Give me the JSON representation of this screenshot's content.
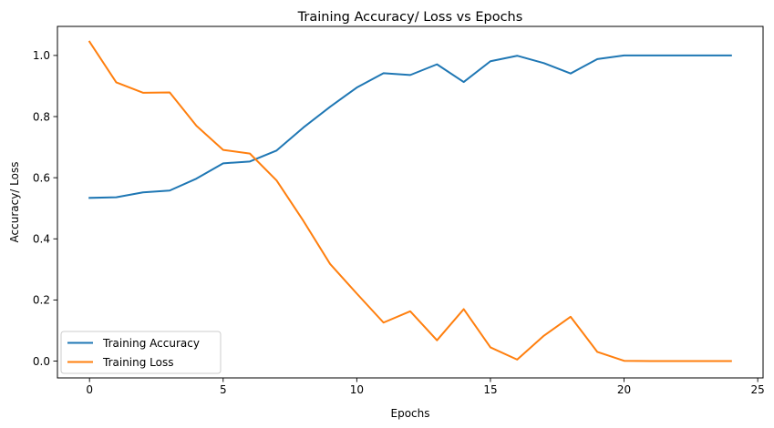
{
  "chart_data": {
    "type": "line",
    "title": "Training Accuracy/ Loss vs Epochs",
    "xlabel": "Epochs",
    "ylabel": "Accuracy/ Loss",
    "xlim": [
      -1.2,
      25.2
    ],
    "ylim": [
      -0.055,
      1.095
    ],
    "xticks": [
      0,
      5,
      10,
      15,
      20,
      25
    ],
    "yticks": [
      0.0,
      0.2,
      0.4,
      0.6,
      0.8,
      1.0
    ],
    "grid": false,
    "legend_position": "lower-left",
    "x": [
      0,
      1,
      2,
      3,
      4,
      5,
      6,
      7,
      8,
      9,
      10,
      11,
      12,
      13,
      14,
      15,
      16,
      17,
      18,
      19,
      20,
      21,
      22,
      23,
      24
    ],
    "series": [
      {
        "name": "Training Accuracy",
        "color": "#1f77b4",
        "values": [
          0.534,
          0.536,
          0.552,
          0.558,
          0.597,
          0.647,
          0.653,
          0.689,
          0.764,
          0.832,
          0.895,
          0.942,
          0.936,
          0.971,
          0.913,
          0.981,
          0.999,
          0.975,
          0.941,
          0.988,
          1.0,
          1.0,
          1.0,
          1.0,
          1.0
        ]
      },
      {
        "name": "Training Loss",
        "color": "#ff7f0e",
        "values": [
          1.045,
          0.912,
          0.878,
          0.879,
          0.77,
          0.691,
          0.679,
          0.591,
          0.459,
          0.318,
          0.221,
          0.126,
          0.163,
          0.068,
          0.17,
          0.045,
          0.005,
          0.083,
          0.145,
          0.03,
          0.001,
          0.0,
          0.0,
          0.0,
          0.0
        ]
      }
    ]
  }
}
